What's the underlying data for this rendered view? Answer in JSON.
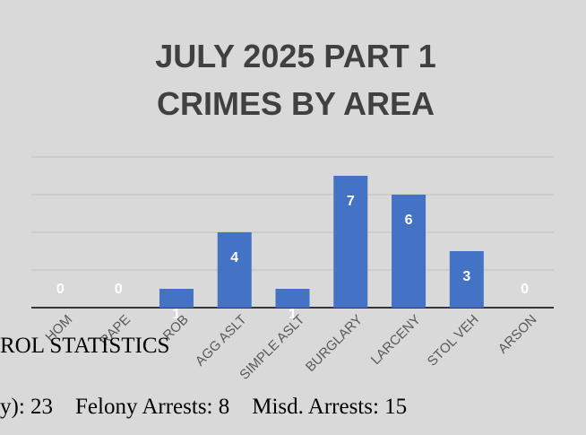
{
  "chart_data": {
    "type": "bar",
    "title": [
      "JULY 2025 PART 1",
      "CRIMES BY AREA"
    ],
    "categories": [
      "HOM",
      "RAPE",
      "ROB",
      "AGG ASLT",
      "SIMPLE ASLT",
      "BURGLARY",
      "LARCENY",
      "STOL VEH",
      "ARSON"
    ],
    "values": [
      0,
      0,
      1,
      4,
      1,
      7,
      6,
      3,
      0
    ],
    "ylim": [
      0,
      8
    ],
    "grid": true,
    "legend": "none",
    "data_labels": true,
    "bar_color": "#4472c4",
    "label_color": "#ffffff",
    "title_color": "#404040",
    "background_color": "#d9d9d9"
  },
  "document": {
    "heading_fragment": "ROL STATISTICS",
    "stats_fragment": "y): 23    Felony Arrests: 8    Misd. Arrests: 15"
  }
}
